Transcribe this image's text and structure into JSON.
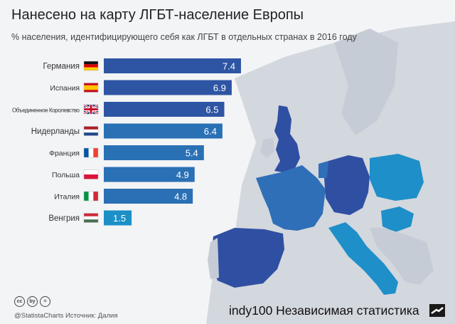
{
  "title": "Нанесено на карту ЛГБТ-население Европы",
  "subtitle": "% населения, идентифицирующего себя как ЛГБТ в отдельных странах в 2016 году",
  "footer": {
    "cc_icons": [
      "cc",
      "by",
      "="
    ],
    "source": "@StatistaCharts Источник: Далия",
    "brand": "indy100 Независимая статистика"
  },
  "colors": {
    "bar_dark": "#2e55a3",
    "bar_mid": "#2a70b5",
    "bar_light": "#1c8fc7",
    "map_sea": "#e8eaee",
    "map_land": "#cdd2da",
    "map_highlight_dark": "#2f4fa2",
    "map_highlight_mid": "#2f6fb7",
    "map_highlight_light": "#1e8fc8"
  },
  "chart_data": {
    "type": "bar",
    "orientation": "horizontal",
    "categories": [
      "Германия",
      "Испания",
      "Объединенное Королевство",
      "Нидерланды",
      "Франция",
      "Польша",
      "Италия",
      "Венгрия"
    ],
    "values": [
      7.4,
      6.9,
      6.5,
      6.4,
      5.4,
      4.9,
      4.8,
      1.5
    ],
    "flags": [
      "flag-germany",
      "flag-spain",
      "flag-uk",
      "flag-netherlands",
      "flag-france",
      "flag-poland",
      "flag-italy",
      "flag-hungary"
    ],
    "xlim": [
      0,
      7.9
    ],
    "grid": false,
    "legend": "none",
    "title": "Нанесено на карту ЛГБТ-население Европы",
    "xlabel": "",
    "ylabel": ""
  }
}
